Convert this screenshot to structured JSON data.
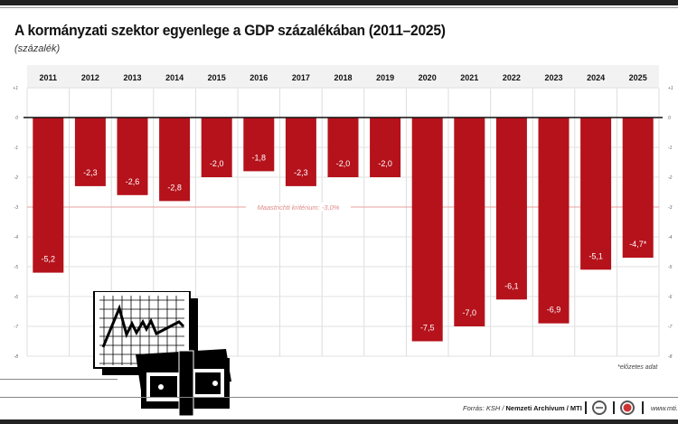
{
  "title": "A kormányzati szektor egyenlege a GDP százalékában (2011–2025)",
  "subtitle": "(százalék)",
  "chart_data": {
    "type": "bar",
    "categories": [
      "2011",
      "2012",
      "2013",
      "2014",
      "2015",
      "2016",
      "2017",
      "2018",
      "2019",
      "2020",
      "2021",
      "2022",
      "2023",
      "2024",
      "2025"
    ],
    "values": [
      -5.2,
      -2.3,
      -2.6,
      -2.8,
      -2.0,
      -1.8,
      -2.3,
      -2.0,
      -2.0,
      -7.5,
      -7.0,
      -6.1,
      -6.9,
      -5.1,
      -4.7
    ],
    "data_labels": [
      "-5,2",
      "-2,3",
      "-2,6",
      "-2,8",
      "-2,0",
      "-1,8",
      "-2,3",
      "-2,0",
      "-2,0",
      "-7,5",
      "-7,0",
      "-6,1",
      "-6,9",
      "-5,1",
      "-4,7*"
    ],
    "ylim": [
      -8,
      1
    ],
    "yticks": [
      "+1",
      "0",
      "-1",
      "-2",
      "-3",
      "-4",
      "-5",
      "-6",
      "-7",
      "-8"
    ],
    "grid": true,
    "bar_color": "#b5121b",
    "reference_line": {
      "value": -3.0,
      "label": "Maastrichti kritérium: -3,0%",
      "color": "#e8a0a0"
    }
  },
  "note": "*előzetes adat",
  "footer": {
    "source_prefix": "Forrás: KSH / ",
    "source_bold": "Nemzeti Archívum / MTI",
    "website": "www.mti."
  },
  "illustration_icon": "chart-with-money-stack-icon"
}
